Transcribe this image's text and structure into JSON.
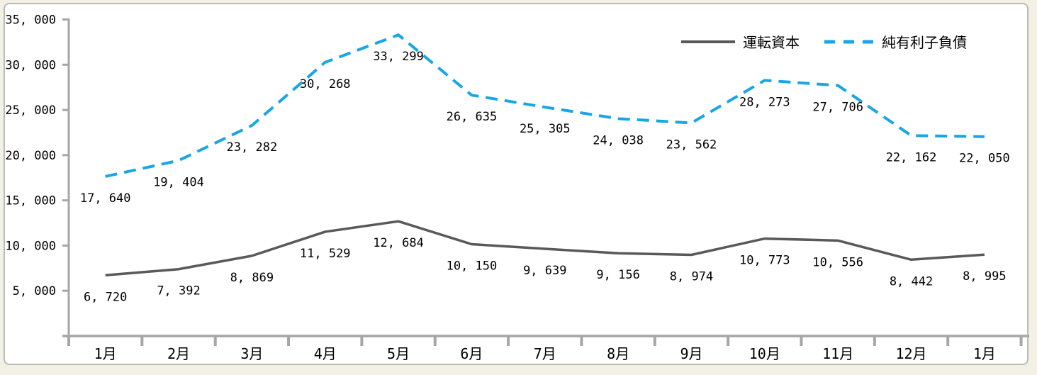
{
  "page": {
    "background_color": "#f3f0e6",
    "frame_background": "#ffffff",
    "frame_border_color": "#bdbab2"
  },
  "chart_data": {
    "type": "line",
    "title": "",
    "xlabel": "",
    "ylabel": "",
    "grid": false,
    "axis_color": "#a6a6a6",
    "text_color": "#000000",
    "categories": [
      "1月",
      "2月",
      "3月",
      "4月",
      "5月",
      "6月",
      "7月",
      "8月",
      "9月",
      "10月",
      "11月",
      "12月",
      "1月"
    ],
    "series": [
      {
        "name": "運転資本",
        "color": "#595959",
        "style": "solid",
        "values": [
          6720,
          7392,
          8869,
          11529,
          12684,
          10150,
          9639,
          9156,
          8974,
          10773,
          10556,
          8442,
          8995
        ],
        "labels": [
          "6, 720",
          "7, 392",
          "8, 869",
          "11, 529",
          "12, 684",
          "10, 150",
          "9, 639",
          "9, 156",
          "8, 974",
          "10, 773",
          "10, 556",
          "8, 442",
          "8, 995"
        ]
      },
      {
        "name": "純有利子負債",
        "color": "#18a6e6",
        "style": "dashed",
        "values": [
          17640,
          19404,
          23282,
          30268,
          33299,
          26635,
          25305,
          24038,
          23562,
          28273,
          27706,
          22162,
          22050
        ],
        "labels": [
          "17, 640",
          "19, 404",
          "23, 282",
          "30, 268",
          "33, 299",
          "26, 635",
          "25, 305",
          "24, 038",
          "23, 562",
          "28, 273",
          "27, 706",
          "22, 162",
          "22, 050"
        ]
      }
    ],
    "y_axis": {
      "min": 0,
      "max": 35000,
      "tick_interval": 5000,
      "tick_values": [
        5000,
        10000,
        15000,
        20000,
        25000,
        30000,
        35000
      ],
      "tick_labels": [
        "5, 000",
        "10, 000",
        "15, 000",
        "20, 000",
        "25, 000",
        "30, 000",
        "35, 000"
      ]
    },
    "legend": {
      "position": "top-right"
    }
  }
}
